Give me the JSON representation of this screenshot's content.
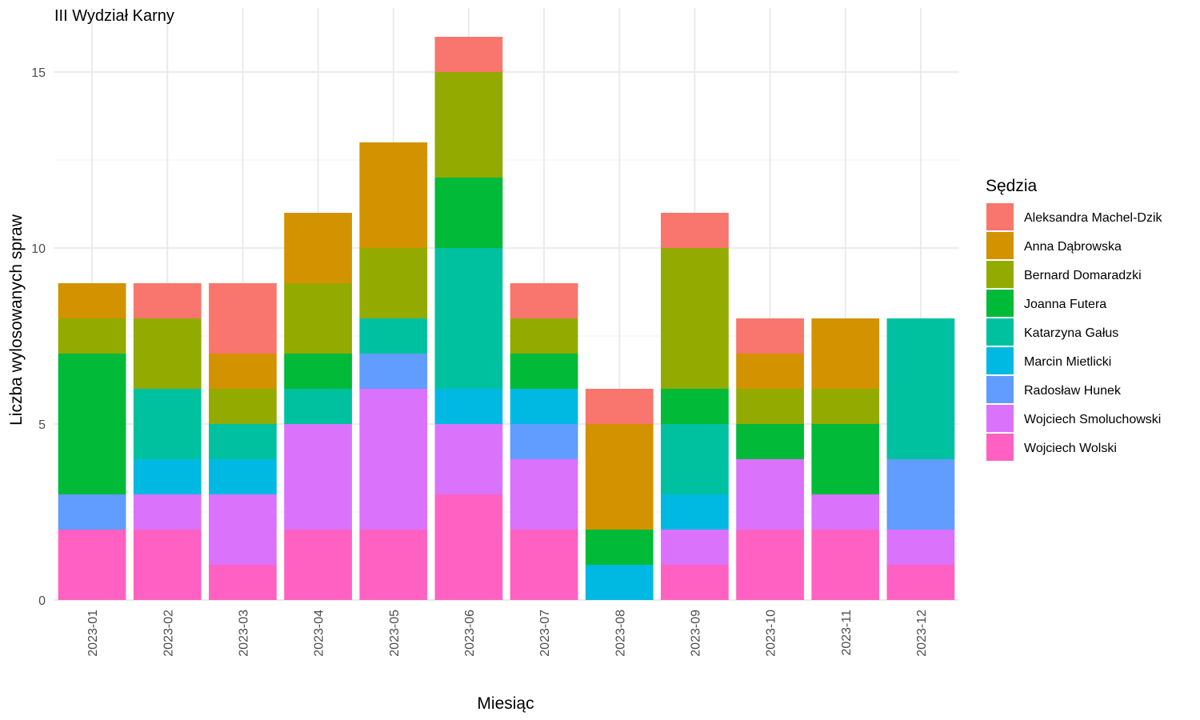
{
  "chart_data": {
    "type": "bar",
    "stacked": true,
    "title": "III Wydział Karny",
    "xlabel": "Miesiąc",
    "ylabel": "Liczba wylosowanych spraw",
    "ylim": [
      0,
      16
    ],
    "yticks": [
      0,
      5,
      10,
      15
    ],
    "grid": true,
    "legend_title": "Sędzia",
    "legend_position": "right",
    "categories": [
      "2023-01",
      "2023-02",
      "2023-03",
      "2023-04",
      "2023-05",
      "2023-06",
      "2023-07",
      "2023-08",
      "2023-09",
      "2023-10",
      "2023-11",
      "2023-12"
    ],
    "series": [
      {
        "name": "Aleksandra Machel-Dzik",
        "color": "#F8766D",
        "values": [
          0,
          1,
          2,
          0,
          0,
          1,
          1,
          1,
          1,
          1,
          0,
          0
        ]
      },
      {
        "name": "Anna Dąbrowska",
        "color": "#D39200",
        "values": [
          1,
          0,
          1,
          2,
          3,
          0,
          0,
          3,
          0,
          1,
          2,
          0
        ]
      },
      {
        "name": "Bernard Domaradzki",
        "color": "#93AA00",
        "values": [
          1,
          2,
          1,
          2,
          2,
          3,
          1,
          0,
          4,
          1,
          1,
          0
        ]
      },
      {
        "name": "Joanna Futera",
        "color": "#00BA38",
        "values": [
          4,
          0,
          0,
          1,
          0,
          2,
          1,
          1,
          1,
          1,
          2,
          0
        ]
      },
      {
        "name": "Katarzyna Gałus",
        "color": "#00C19F",
        "values": [
          0,
          2,
          1,
          1,
          1,
          4,
          0,
          0,
          2,
          0,
          0,
          4
        ]
      },
      {
        "name": "Marcin Mietlicki",
        "color": "#00B9E3",
        "values": [
          0,
          1,
          1,
          0,
          0,
          1,
          1,
          1,
          1,
          0,
          0,
          0
        ]
      },
      {
        "name": "Radosław Hunek",
        "color": "#619CFF",
        "values": [
          1,
          0,
          0,
          0,
          1,
          0,
          1,
          0,
          0,
          0,
          0,
          2
        ]
      },
      {
        "name": "Wojciech Smoluchowski",
        "color": "#DB72FB",
        "values": [
          0,
          1,
          2,
          3,
          4,
          2,
          2,
          0,
          1,
          2,
          1,
          1
        ]
      },
      {
        "name": "Wojciech Wolski",
        "color": "#FF61C3",
        "values": [
          2,
          2,
          1,
          2,
          2,
          3,
          2,
          0,
          1,
          2,
          2,
          1
        ]
      }
    ]
  }
}
